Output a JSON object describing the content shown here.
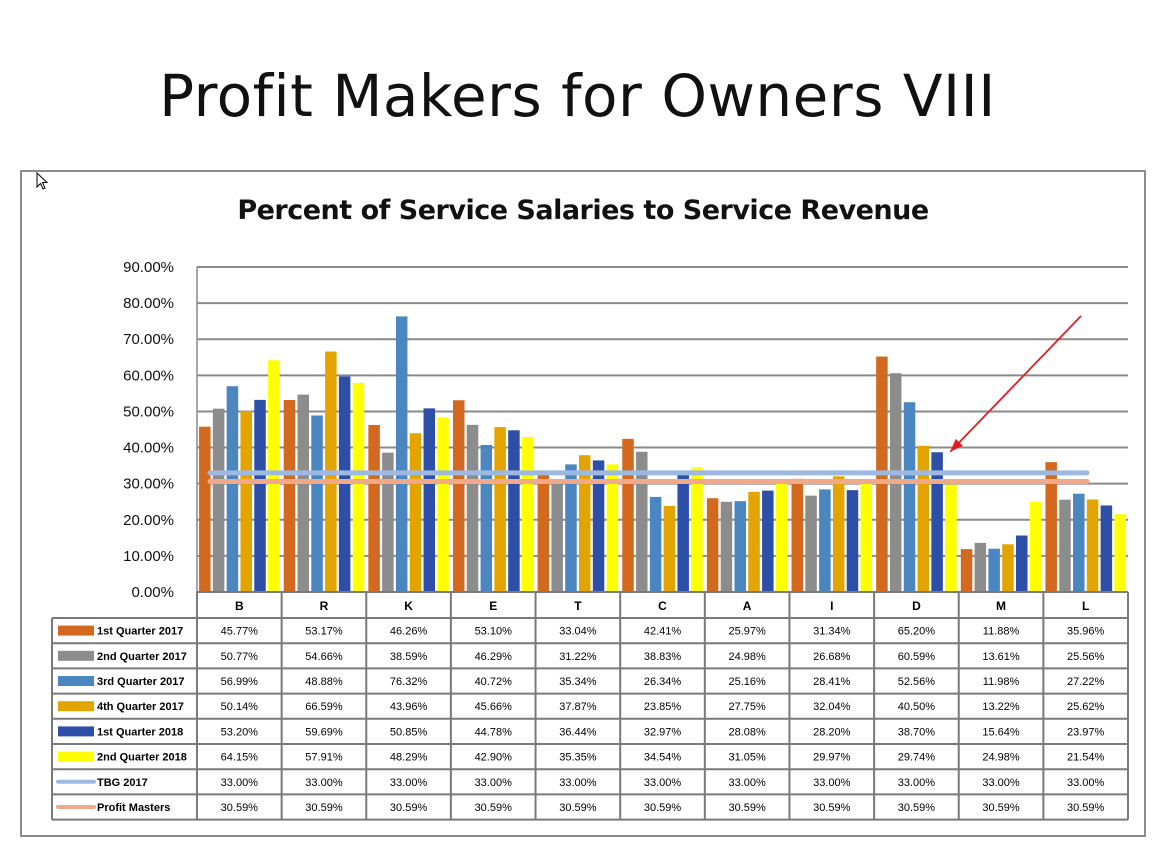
{
  "slide": {
    "title": "Profit Makers for Owners VIII"
  },
  "chart_data": {
    "type": "bar",
    "title": "Percent of Service Salaries to Service Revenue",
    "ylim": [
      0,
      90
    ],
    "y_ticks": [
      "0.00%",
      "10.00%",
      "20.00%",
      "30.00%",
      "40.00%",
      "50.00%",
      "60.00%",
      "70.00%",
      "80.00%",
      "90.00%"
    ],
    "grid": true,
    "legend": "table-below",
    "categories": [
      "B",
      "R",
      "K",
      "E",
      "T",
      "C",
      "A",
      "I",
      "D",
      "M",
      "L"
    ],
    "series": [
      {
        "name": "1st Quarter 2017",
        "kind": "bar",
        "color": "#D2691E",
        "values": [
          45.77,
          53.17,
          46.26,
          53.1,
          33.04,
          42.41,
          25.97,
          31.34,
          65.2,
          11.88,
          35.96
        ],
        "labels": [
          "45.77%",
          "53.17%",
          "46.26%",
          "53.10%",
          "33.04%",
          "42.41%",
          "25.97%",
          "31.34%",
          "65.20%",
          "11.88%",
          "35.96%"
        ]
      },
      {
        "name": "2nd Quarter 2017",
        "kind": "bar",
        "color": "#8C8C8C",
        "values": [
          50.77,
          54.66,
          38.59,
          46.29,
          31.22,
          38.83,
          24.98,
          26.68,
          60.59,
          13.61,
          25.56
        ],
        "labels": [
          "50.77%",
          "54.66%",
          "38.59%",
          "46.29%",
          "31.22%",
          "38.83%",
          "24.98%",
          "26.68%",
          "60.59%",
          "13.61%",
          "25.56%"
        ]
      },
      {
        "name": "3rd Quarter 2017",
        "kind": "bar",
        "color": "#4A86C0",
        "values": [
          56.99,
          48.88,
          76.32,
          40.72,
          35.34,
          26.34,
          25.16,
          28.41,
          52.56,
          11.98,
          27.22
        ],
        "labels": [
          "56.99%",
          "48.88%",
          "76.32%",
          "40.72%",
          "35.34%",
          "26.34%",
          "25.16%",
          "28.41%",
          "52.56%",
          "11.98%",
          "27.22%"
        ]
      },
      {
        "name": "4th Quarter 2017",
        "kind": "bar",
        "color": "#E3A400",
        "values": [
          50.14,
          66.59,
          43.96,
          45.66,
          37.87,
          23.85,
          27.75,
          32.04,
          40.5,
          13.22,
          25.62
        ],
        "labels": [
          "50.14%",
          "66.59%",
          "43.96%",
          "45.66%",
          "37.87%",
          "23.85%",
          "27.75%",
          "32.04%",
          "40.50%",
          "13.22%",
          "25.62%"
        ]
      },
      {
        "name": "1st Quarter 2018",
        "kind": "bar",
        "color": "#2E4FA8",
        "values": [
          53.2,
          59.69,
          50.85,
          44.78,
          36.44,
          32.97,
          28.08,
          28.2,
          38.7,
          15.64,
          23.97
        ],
        "labels": [
          "53.20%",
          "59.69%",
          "50.85%",
          "44.78%",
          "36.44%",
          "32.97%",
          "28.08%",
          "28.20%",
          "38.70%",
          "15.64%",
          "23.97%"
        ]
      },
      {
        "name": "2nd Quarter 2018",
        "kind": "bar",
        "color": "#FFFF00",
        "values": [
          64.15,
          57.91,
          48.29,
          42.9,
          35.35,
          34.54,
          31.05,
          29.97,
          29.74,
          24.98,
          21.54
        ],
        "labels": [
          "64.15%",
          "57.91%",
          "48.29%",
          "42.90%",
          "35.35%",
          "34.54%",
          "31.05%",
          "29.97%",
          "29.74%",
          "24.98%",
          "21.54%"
        ]
      },
      {
        "name": "TBG 2017",
        "kind": "line",
        "color": "#9DB9E2",
        "values": [
          33,
          33,
          33,
          33,
          33,
          33,
          33,
          33,
          33,
          33,
          33
        ],
        "labels": [
          "33.00%",
          "33.00%",
          "33.00%",
          "33.00%",
          "33.00%",
          "33.00%",
          "33.00%",
          "33.00%",
          "33.00%",
          "33.00%",
          "33.00%"
        ]
      },
      {
        "name": "Profit Masters",
        "kind": "line",
        "color": "#F2A98A",
        "values": [
          30.59,
          30.59,
          30.59,
          30.59,
          30.59,
          30.59,
          30.59,
          30.59,
          30.59,
          30.59,
          30.59
        ],
        "labels": [
          "30.59%",
          "30.59%",
          "30.59%",
          "30.59%",
          "30.59%",
          "30.59%",
          "30.59%",
          "30.59%",
          "30.59%",
          "30.59%",
          "30.59%"
        ]
      }
    ],
    "annotation": {
      "type": "arrow",
      "color": "#E02020",
      "points_to": "D"
    }
  }
}
